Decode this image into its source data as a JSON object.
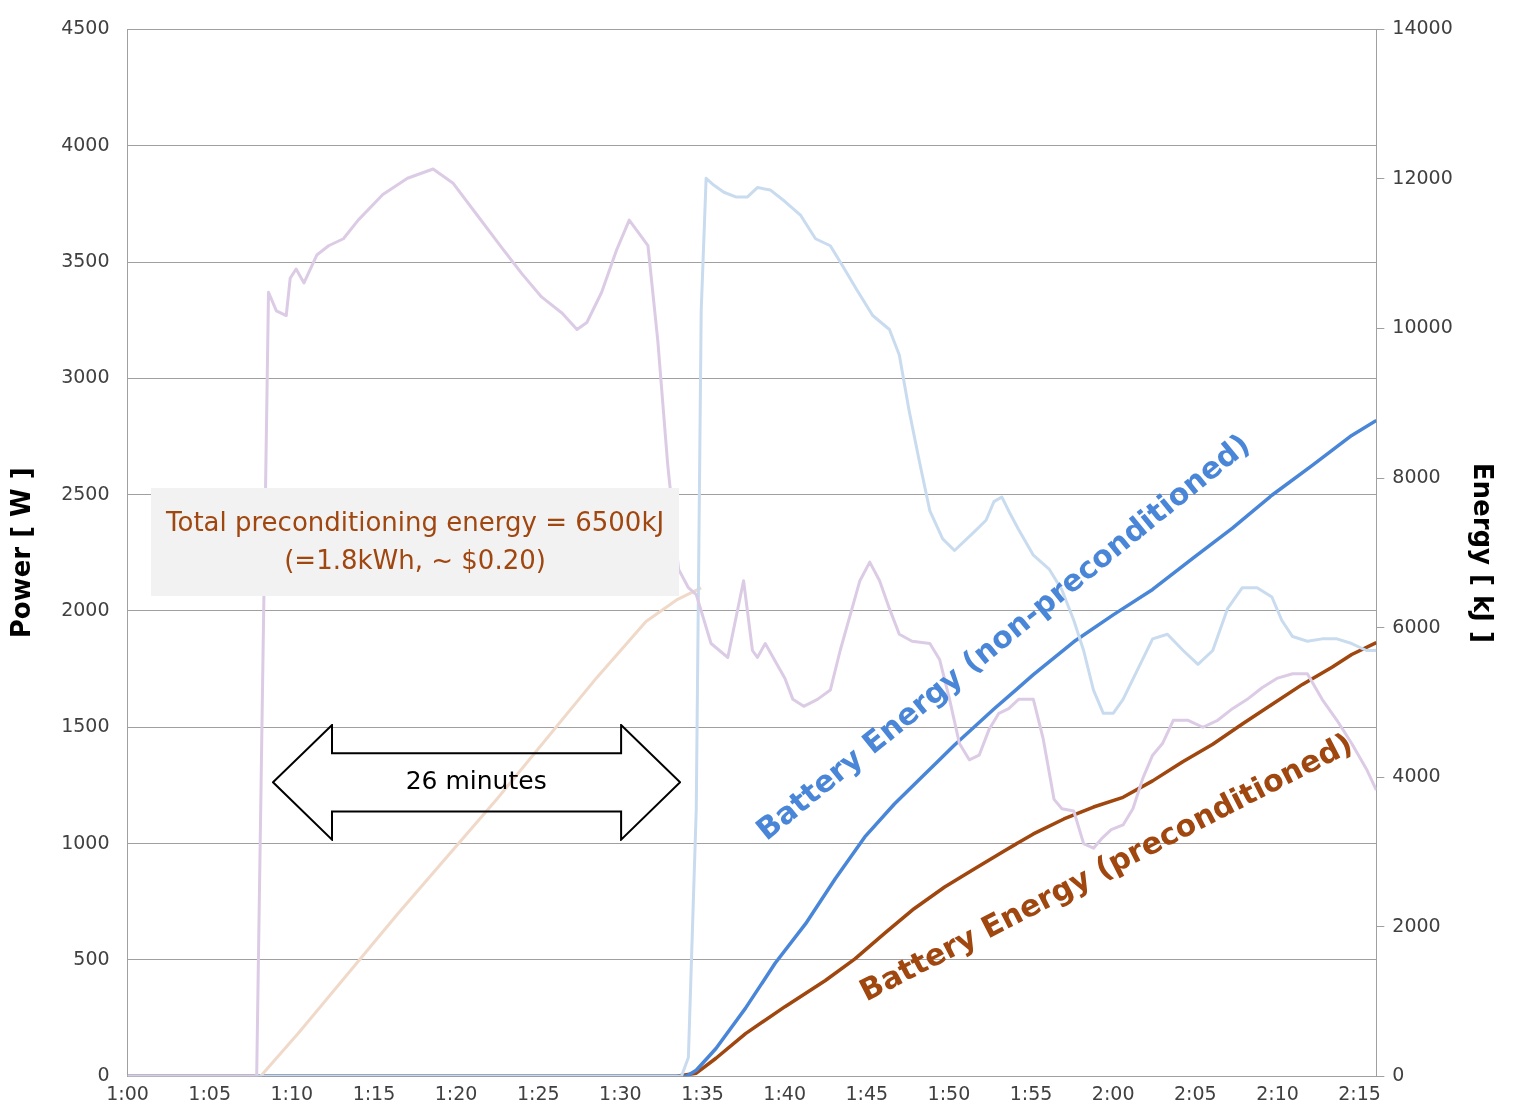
{
  "chart_data": {
    "type": "line",
    "ylabel": "Power [ W ]",
    "y2label": "Energy [ kJ ]",
    "xlim": [
      1.0,
      2.267
    ],
    "xticks": [
      {
        "value": 1.0,
        "label": "1:00"
      },
      {
        "value": 1.0833,
        "label": "1:05"
      },
      {
        "value": 1.1667,
        "label": "1:10"
      },
      {
        "value": 1.25,
        "label": "1:15"
      },
      {
        "value": 1.3333,
        "label": "1:20"
      },
      {
        "value": 1.4167,
        "label": "1:25"
      },
      {
        "value": 1.5,
        "label": "1:30"
      },
      {
        "value": 1.5833,
        "label": "1:35"
      },
      {
        "value": 1.6667,
        "label": "1:40"
      },
      {
        "value": 1.75,
        "label": "1:45"
      },
      {
        "value": 1.8333,
        "label": "1:50"
      },
      {
        "value": 1.9167,
        "label": "1:55"
      },
      {
        "value": 2.0,
        "label": "2:00"
      },
      {
        "value": 2.0833,
        "label": "2:05"
      },
      {
        "value": 2.1667,
        "label": "2:10"
      },
      {
        "value": 2.25,
        "label": "2:15"
      }
    ],
    "ylim": [
      0,
      4500
    ],
    "yticks": [
      0,
      500,
      1000,
      1500,
      2000,
      2500,
      3000,
      3500,
      4000,
      4500
    ],
    "y2lim": [
      0,
      14000
    ],
    "y2ticks": [
      0,
      2000,
      4000,
      6000,
      8000,
      10000,
      12000,
      14000
    ],
    "grid": "y",
    "legend": false,
    "marker": "none",
    "line_style": "solid",
    "annotations": [
      "Total preconditioning energy = 6500kJ\n(=1.8kWh, ~ $0.20)",
      "26 minutes"
    ],
    "series": [
      {
        "color": "#dccbe5",
        "x": [
          1.0,
          1.131,
          1.143,
          1.151,
          1.161,
          1.165,
          1.171,
          1.179,
          1.192,
          1.204,
          1.219,
          1.234,
          1.259,
          1.284,
          1.31,
          1.33,
          1.355,
          1.38,
          1.4,
          1.42,
          1.441,
          1.456,
          1.466,
          1.481,
          1.496,
          1.509,
          1.528,
          1.538,
          1.548,
          1.559,
          1.569,
          1.577,
          1.592,
          1.609,
          1.625,
          1.634,
          1.639,
          1.647,
          1.667,
          1.675,
          1.686,
          1.7,
          1.713,
          1.723,
          1.733,
          1.743,
          1.753,
          1.763,
          1.773,
          1.783,
          1.796,
          1.814,
          1.824,
          1.834,
          1.844,
          1.854,
          1.864,
          1.874,
          1.884,
          1.894,
          1.904,
          1.919,
          1.929,
          1.94,
          1.948,
          1.96,
          1.97,
          1.98,
          1.988,
          1.998,
          2.01,
          2.02,
          2.03,
          2.04,
          2.05,
          2.061,
          2.076,
          2.091,
          2.106,
          2.121,
          2.136,
          2.151,
          2.166,
          2.182,
          2.197,
          2.212,
          2.227,
          2.242,
          2.257,
          2.267
        ],
        "values": [
          0,
          0,
          3370,
          3290,
          3270,
          3430,
          3470,
          3410,
          3530,
          3570,
          3600,
          3680,
          3790,
          3860,
          3900,
          3840,
          3700,
          3560,
          3450,
          3350,
          3280,
          3210,
          3240,
          3370,
          3550,
          3680,
          3570,
          3160,
          2630,
          2180,
          2100,
          2070,
          1860,
          1800,
          2130,
          1830,
          1800,
          1860,
          1710,
          1620,
          1590,
          1620,
          1660,
          1830,
          1980,
          2130,
          2210,
          2130,
          2010,
          1900,
          1870,
          1860,
          1790,
          1620,
          1430,
          1360,
          1380,
          1490,
          1560,
          1580,
          1620,
          1620,
          1450,
          1190,
          1150,
          1140,
          1000,
          980,
          1020,
          1060,
          1080,
          1150,
          1280,
          1380,
          1430,
          1530,
          1530,
          1500,
          1530,
          1580,
          1620,
          1670,
          1710,
          1730,
          1730,
          1620,
          1530,
          1430,
          1320,
          1230
        ]
      },
      {
        "color": "#c9dbef",
        "x": [
          1.0,
          1.562,
          1.569,
          1.577,
          1.582,
          1.587,
          1.595,
          1.605,
          1.617,
          1.629,
          1.639,
          1.652,
          1.667,
          1.683,
          1.698,
          1.713,
          1.726,
          1.74,
          1.756,
          1.773,
          1.783,
          1.793,
          1.803,
          1.814,
          1.827,
          1.839,
          1.859,
          1.871,
          1.879,
          1.887,
          1.894,
          1.904,
          1.919,
          1.935,
          1.948,
          1.96,
          1.97,
          1.98,
          1.99,
          2.0,
          2.01,
          2.025,
          2.04,
          2.055,
          2.071,
          2.086,
          2.101,
          2.116,
          2.131,
          2.146,
          2.161,
          2.171,
          2.182,
          2.197,
          2.212,
          2.227,
          2.242,
          2.257,
          2.267
        ],
        "values": [
          0,
          0,
          80,
          1150,
          3290,
          3860,
          3830,
          3800,
          3780,
          3780,
          3820,
          3810,
          3760,
          3700,
          3600,
          3570,
          3480,
          3380,
          3270,
          3210,
          3100,
          2860,
          2650,
          2430,
          2310,
          2260,
          2340,
          2390,
          2470,
          2490,
          2430,
          2350,
          2240,
          2180,
          2090,
          1960,
          1830,
          1660,
          1560,
          1560,
          1620,
          1750,
          1880,
          1900,
          1830,
          1770,
          1830,
          2010,
          2100,
          2100,
          2060,
          1960,
          1890,
          1870,
          1880,
          1880,
          1860,
          1830,
          1830
        ]
      },
      {
        "color": "#f0d9c8",
        "axis": "y2",
        "x": [
          1.0,
          1.135,
          1.173,
          1.274,
          1.375,
          1.476,
          1.526,
          1.557,
          1.582
        ],
        "values": [
          0,
          0,
          570,
          2170,
          3710,
          5330,
          6080,
          6370,
          6530
        ]
      },
      {
        "name": "Battery Energy (non-preconditioned)",
        "color": "#4a86d8",
        "axis": "y2",
        "x": [
          1.0,
          1.567,
          1.577,
          1.597,
          1.627,
          1.657,
          1.688,
          1.718,
          1.748,
          1.778,
          1.809,
          1.839,
          1.879,
          1.919,
          1.96,
          2.0,
          2.04,
          2.081,
          2.121,
          2.161,
          2.202,
          2.242,
          2.267
        ],
        "values": [
          0,
          0,
          80,
          370,
          910,
          1510,
          2040,
          2640,
          3200,
          3640,
          4040,
          4430,
          4910,
          5370,
          5810,
          6170,
          6510,
          6930,
          7330,
          7770,
          8170,
          8570,
          8770
        ]
      },
      {
        "name": "Battery Energy (preconditioned)",
        "color": "#a0460f",
        "axis": "y2",
        "x": [
          1.0,
          1.557,
          1.577,
          1.597,
          1.627,
          1.667,
          1.708,
          1.738,
          1.768,
          1.798,
          1.829,
          1.859,
          1.889,
          1.919,
          1.95,
          1.98,
          2.01,
          2.04,
          2.071,
          2.101,
          2.131,
          2.161,
          2.192,
          2.222,
          2.242,
          2.267
        ],
        "values": [
          0,
          0,
          40,
          240,
          570,
          930,
          1280,
          1570,
          1910,
          2240,
          2530,
          2770,
          3010,
          3240,
          3440,
          3600,
          3730,
          3950,
          4210,
          4440,
          4710,
          4970,
          5240,
          5470,
          5640,
          5800
        ]
      }
    ]
  }
}
